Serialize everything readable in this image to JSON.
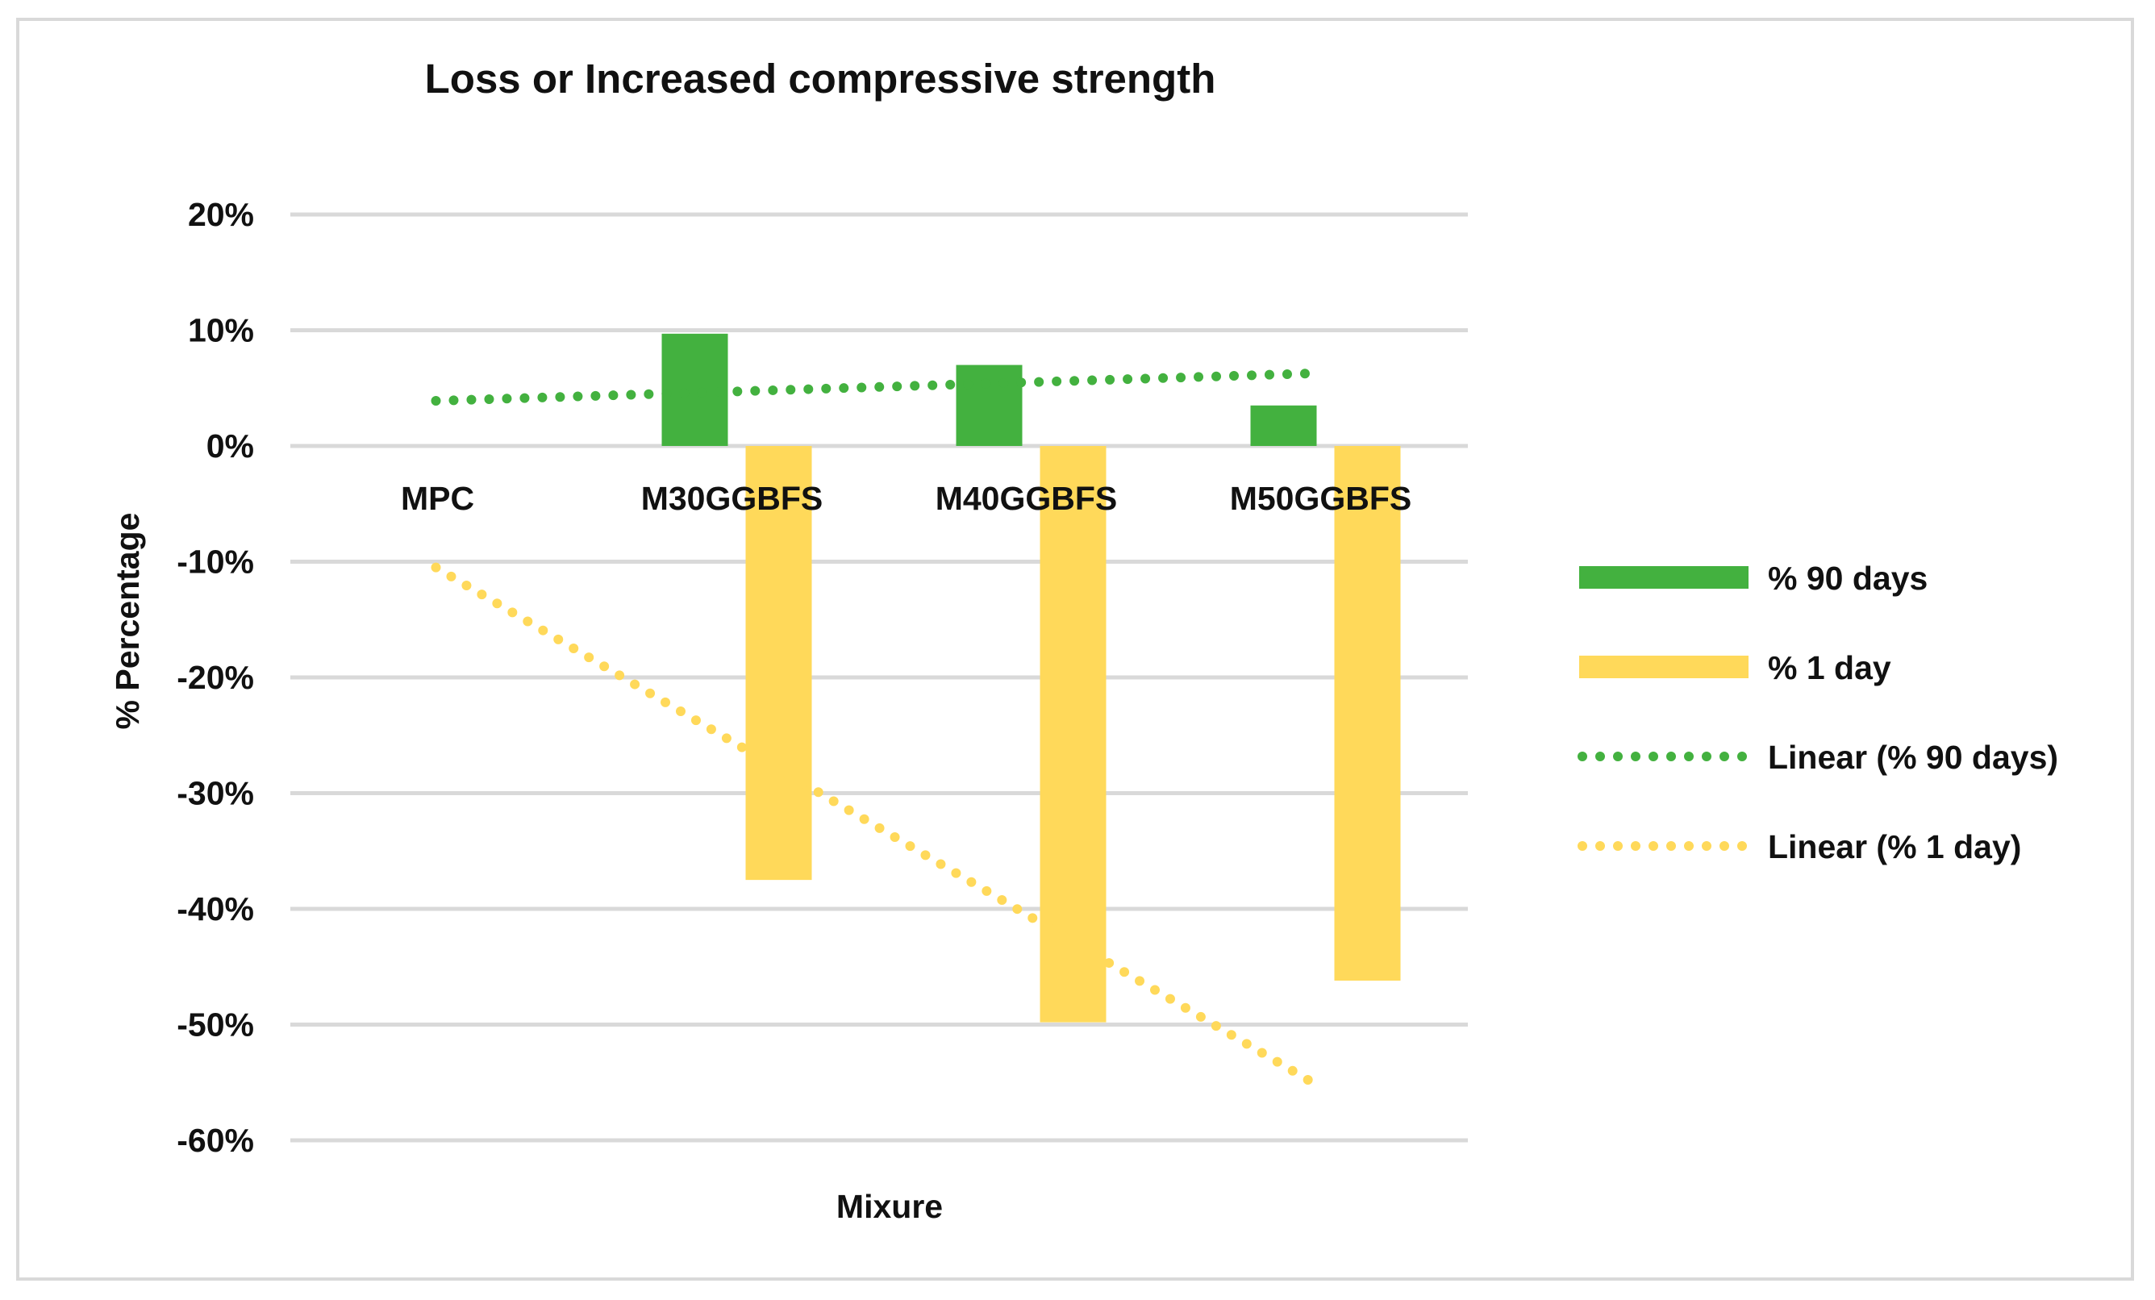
{
  "chart_data": {
    "type": "bar",
    "title": "Loss or Increased compressive strength",
    "xlabel": "Mixure",
    "ylabel": "% Percentage",
    "ylim": [
      -0.6,
      0.2
    ],
    "yticks": [
      0.2,
      0.1,
      0.0,
      -0.1,
      -0.2,
      -0.3,
      -0.4,
      -0.5,
      -0.6
    ],
    "ytick_labels": [
      "20%",
      "10%",
      "0%",
      "-10%",
      "-20%",
      "-30%",
      "-40%",
      "-50%",
      "-60%"
    ],
    "categories": [
      "MPC",
      "M30GGBFS",
      "M40GGBFS",
      "M50GGBFS"
    ],
    "series": [
      {
        "name": "% 90 days",
        "values": [
          0.0,
          0.097,
          0.07,
          0.035
        ],
        "color": "#43b13f"
      },
      {
        "name": "% 1 day",
        "values": [
          0.0,
          -0.375,
          -0.498,
          -0.462
        ],
        "color": "#ffd95a"
      }
    ],
    "trendlines": [
      {
        "name": "Linear (% 90 days)",
        "start": 0.039,
        "end": 0.063,
        "color": "#43b13f"
      },
      {
        "name": "Linear (% 1 day)",
        "start": -0.105,
        "end": -0.555,
        "color": "#ffd95a"
      }
    ],
    "legend_position": "right",
    "grid": true
  }
}
